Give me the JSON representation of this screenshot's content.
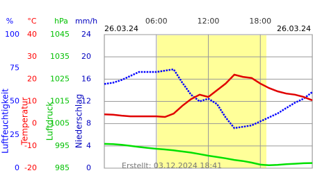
{
  "chart_data": {
    "type": "line",
    "date_left": "26.03.24",
    "date_right": "26.03.24",
    "footer": "Erstellt: 03.12.2024 18:41",
    "xlim": [
      0,
      24
    ],
    "xticks": [
      {
        "value": 6,
        "label": "06:00"
      },
      {
        "value": 12,
        "label": "12:00"
      },
      {
        "value": 18,
        "label": "18:00"
      }
    ],
    "daylight": [
      6.1,
      18.7
    ],
    "grid": true,
    "axes": [
      {
        "unit": "%",
        "title": "Luftfeuchtigkeit",
        "color": "#0000ff",
        "ylim": [
          0,
          100
        ],
        "yticks": [
          100,
          75,
          50,
          25,
          0
        ]
      },
      {
        "unit": "°C",
        "title": "Temperatur",
        "color": "#ff0000",
        "ylim": [
          -20,
          40
        ],
        "yticks": [
          40,
          30,
          20,
          10,
          0,
          -10,
          -20
        ]
      },
      {
        "unit": "hPa",
        "title": "Luftdruck",
        "color": "#00c000",
        "ylim": [
          985,
          1045
        ],
        "yticks": [
          1045,
          1035,
          1025,
          1015,
          1005,
          995,
          985
        ]
      },
      {
        "unit": "mm/h",
        "title": "Niederschlag",
        "color": "#0000c0",
        "ylim": [
          0,
          24
        ],
        "yticks": [
          24,
          20,
          16,
          12,
          8,
          4,
          0
        ]
      }
    ],
    "x": [
      0,
      1,
      2,
      3,
      4,
      5,
      6,
      7,
      8,
      9,
      10,
      11,
      12,
      13,
      14,
      15,
      16,
      17,
      18,
      19,
      20,
      21,
      22,
      23,
      24
    ],
    "series": [
      {
        "name": "Luftfeuchtigkeit",
        "color": "#0000ff",
        "axis": 0,
        "style": "dots",
        "values": [
          63,
          64,
          66,
          69,
          72,
          72,
          72,
          73,
          74,
          64,
          55,
          50,
          52,
          48,
          38,
          30,
          31,
          32,
          35,
          38,
          41,
          45,
          49,
          52,
          57
        ]
      },
      {
        "name": "Temperatur",
        "color": "#e00000",
        "axis": 1,
        "style": "line",
        "values": [
          4.2,
          4.0,
          3.6,
          3.3,
          3.3,
          3.3,
          3.3,
          3.0,
          4.5,
          8.0,
          11.0,
          13.0,
          12.0,
          15.0,
          18.0,
          22.0,
          21.0,
          20.5,
          18.0,
          16.0,
          14.5,
          13.5,
          13.0,
          12.0,
          10.5
        ]
      },
      {
        "name": "Luftdruck",
        "color": "#00e000",
        "axis": 2,
        "style": "line",
        "values": [
          995.9,
          995.8,
          995.5,
          995.0,
          994.5,
          994.1,
          993.7,
          993.4,
          993.0,
          992.5,
          992.0,
          991.3,
          990.6,
          990.0,
          989.4,
          988.7,
          988.2,
          987.5,
          986.6,
          986.3,
          986.5,
          986.8,
          987.0,
          987.2,
          987.3
        ]
      }
    ]
  }
}
